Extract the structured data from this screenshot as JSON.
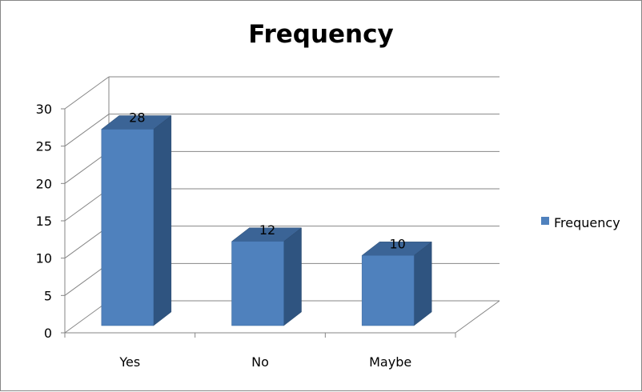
{
  "chart_data": {
    "type": "bar",
    "title": "Frequency",
    "categories": [
      "Yes",
      "No",
      "Maybe"
    ],
    "series": [
      {
        "name": "Frequency",
        "values": [
          28,
          12,
          10
        ],
        "color": "#4f81bd"
      }
    ],
    "ylim": [
      0,
      30
    ],
    "yticks": [
      "0",
      "5",
      "10",
      "15",
      "20",
      "25",
      "30"
    ],
    "data_labels": [
      "28",
      "12",
      "10"
    ],
    "grid": true,
    "legend": "right",
    "style": "3d-column"
  }
}
